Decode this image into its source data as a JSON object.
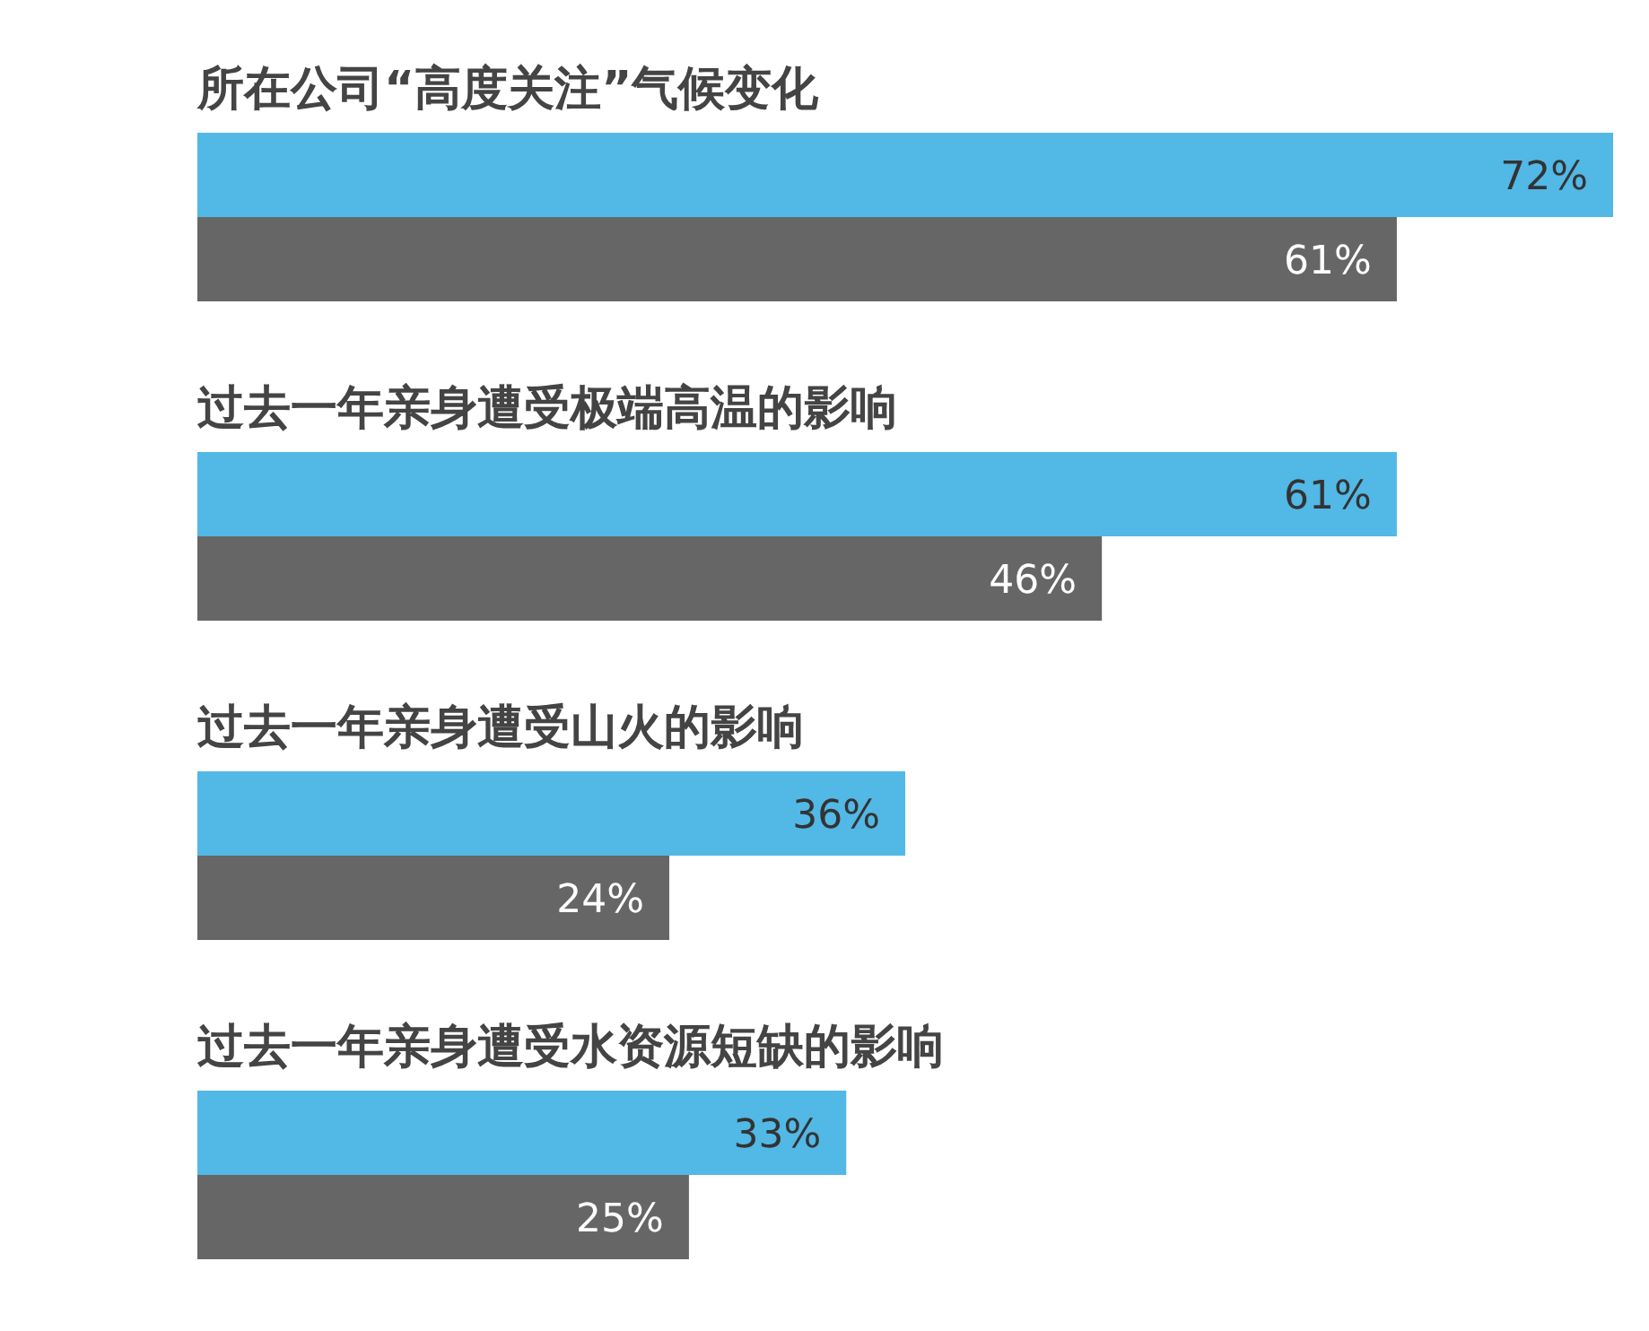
{
  "chart_data": {
    "type": "bar",
    "orientation": "horizontal",
    "categories": [
      "所在公司“高度关注”气候变化",
      "过去一年亲身遭受极端高温的影响",
      "过去一年亲身遭受山火的影响",
      "过去一年亲身遭受水资源短缺的影响"
    ],
    "series": [
      {
        "color": "#52b8e6",
        "values": [
          72,
          61,
          36,
          33
        ],
        "value_labels": [
          "72%",
          "61%",
          "36%",
          "33%"
        ]
      },
      {
        "color": "#666666",
        "values": [
          61,
          46,
          24,
          25
        ],
        "value_labels": [
          "61%",
          "46%",
          "24%",
          "25%"
        ]
      }
    ]
  }
}
